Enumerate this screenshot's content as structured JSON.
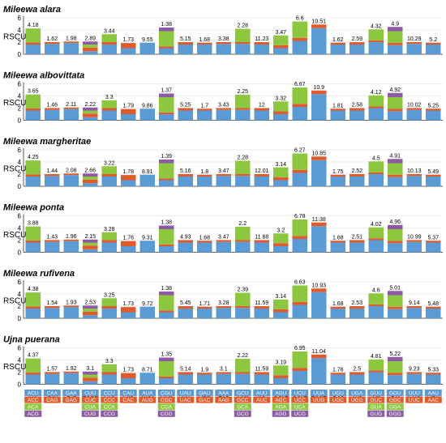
{
  "colors": {
    "blue": "#5b9bd5",
    "red": "#e05a2b",
    "green": "#8dc63f",
    "purple": "#8e5aa6",
    "axis": "#333333",
    "grid": "#d9d9d9"
  },
  "chart_data": {
    "type": "bar",
    "stacked": true,
    "ylabel": "RSCU",
    "ylim": [
      0,
      6
    ],
    "yticks": [
      0,
      2,
      4,
      6
    ],
    "grid": true,
    "categories": [
      "Thr",
      "Gln",
      "Glu",
      "Leu1",
      "Pro",
      "His",
      "Met",
      "Arg",
      "Tyr",
      "Asp",
      "Lys",
      "Ala",
      "Ile",
      "Ser1",
      "Ser2",
      "Leu2",
      "Cys",
      "Trp",
      "Val",
      "Gly",
      "Phe",
      "Asn"
    ],
    "panels": [
      {
        "title": "Mileewa alara",
        "labels": [
          "4.18",
          "1.62",
          "1.98",
          "2.89",
          "3.44",
          "1.73",
          "9.55",
          "1.38",
          "5.15",
          "1.68",
          "3.38",
          "2.28",
          "11.23",
          "3.47",
          "6.6",
          "10.51",
          "1.62",
          "2.59",
          "4.32",
          "4.9",
          "10.29",
          "5.2"
        ]
      },
      {
        "title": "Mileewa albovittata",
        "labels": [
          "3.65",
          "1.46",
          "2.11",
          "2.22",
          "3.3",
          "1.79",
          "9.86",
          "1.37",
          "5.25",
          "1.7",
          "3.43",
          "2.25",
          "12",
          "3.32",
          "6.67",
          "10.9",
          "1.81",
          "2.58",
          "4.12",
          "4.92",
          "10.02",
          "5.25"
        ]
      },
      {
        "title": "Mileewa margheritae",
        "labels": [
          "4.25",
          "1.44",
          "2.08",
          "2.66",
          "3.22",
          "1.78",
          "8.91",
          "1.39",
          "5.16",
          "1.8",
          "3.47",
          "2.28",
          "12.01",
          "3.14",
          "6.27",
          "10.85",
          "1.75",
          "2.52",
          "4.5",
          "4.91",
          "10.13",
          "5.49"
        ]
      },
      {
        "title": "Mileewa ponta",
        "labels": [
          "3.88",
          "1.43",
          "1.96",
          "2.15",
          "3.28",
          "1.76",
          "9.31",
          "1.38",
          "4.93",
          "1.68",
          "3.47",
          "2.2",
          "11.68",
          "3.2",
          "6.78",
          "11.38",
          "1.68",
          "2.51",
          "4.02",
          "4.96",
          "10.99",
          "5.37"
        ]
      },
      {
        "title": "Mileewa rufivena",
        "labels": [
          "4.38",
          "1.54",
          "1.93",
          "2.53",
          "3.25",
          "1.73",
          "9.72",
          "1.38",
          "5.45",
          "1.71",
          "3.28",
          "2.39",
          "11.59",
          "3.14",
          "6.63",
          "10.93",
          "1.68",
          "2.53",
          "4.6",
          "5.01",
          "9.14",
          "5.48"
        ]
      },
      {
        "title": "Ujna puerana",
        "labels": [
          "4.37",
          "1.57",
          "1.92",
          "3.1",
          "3.3",
          "1.73",
          "8.71",
          "1.35",
          "5.14",
          "1.9",
          "3.1",
          "2.22",
          "11.59",
          "3.19",
          "6.95",
          "11.04",
          "1.76",
          "2.5",
          "4.81",
          "5.22",
          "9.23",
          "5.33"
        ]
      }
    ],
    "segments": [
      [
        1.6,
        0.35,
        2.3
      ],
      [
        1.7,
        0.3
      ],
      [
        1.85,
        0.25
      ],
      [
        0.5,
        0.6,
        0.5,
        0.5
      ],
      [
        1.6,
        0.4,
        1.3
      ],
      [
        1.0,
        0.85
      ],
      [
        1.9
      ],
      [
        1.0,
        0.3,
        2.5,
        0.6
      ],
      [
        1.6,
        0.4
      ],
      [
        1.6,
        0.3
      ],
      [
        1.7,
        0.3
      ],
      [
        1.7,
        0.3,
        2.2
      ],
      [
        1.6,
        0.4
      ],
      [
        1.0,
        0.5,
        1.6
      ],
      [
        2.2,
        0.5,
        2.7
      ],
      [
        4.3,
        0.6
      ],
      [
        1.6,
        0.3
      ],
      [
        1.6,
        0.4
      ],
      [
        2.0,
        0.3,
        1.8
      ],
      [
        1.5,
        0.4,
        1.9,
        0.7
      ],
      [
        1.7,
        0.3
      ],
      [
        1.6,
        0.3
      ]
    ],
    "codon_legend": [
      [
        "ACU",
        "ACC",
        "ACA",
        "ACG"
      ],
      [
        "CAA",
        "CAG"
      ],
      [
        "GAA",
        "GAG"
      ],
      [
        "CUU",
        "CUC",
        "CUA",
        "CUG"
      ],
      [
        "CCU",
        "CCC",
        "CCA",
        "CCG"
      ],
      [
        "CAU",
        "CAC"
      ],
      [
        "AUA",
        "AUG"
      ],
      [
        "CGU",
        "CGC",
        "CGA",
        "CGG"
      ],
      [
        "UAU",
        "UAC"
      ],
      [
        "GAU",
        "GAC"
      ],
      [
        "AAA",
        "AAG"
      ],
      [
        "GCU",
        "GCC",
        "GCA",
        "GCG"
      ],
      [
        "AUU",
        "AUC"
      ],
      [
        "AGU",
        "AGC",
        "AGA",
        "AGG"
      ],
      [
        "UCU",
        "UCC",
        "UCA",
        "UCG"
      ],
      [
        "UUA",
        "UUG"
      ],
      [
        "UGU",
        "UGC"
      ],
      [
        "UGA",
        "UGG"
      ],
      [
        "GUU",
        "GUC",
        "GUA",
        "GUG"
      ],
      [
        "GGU",
        "GGC",
        "GGA",
        "GGG"
      ],
      [
        "UUU",
        "UUC"
      ],
      [
        "AAU",
        "AAC"
      ]
    ]
  }
}
